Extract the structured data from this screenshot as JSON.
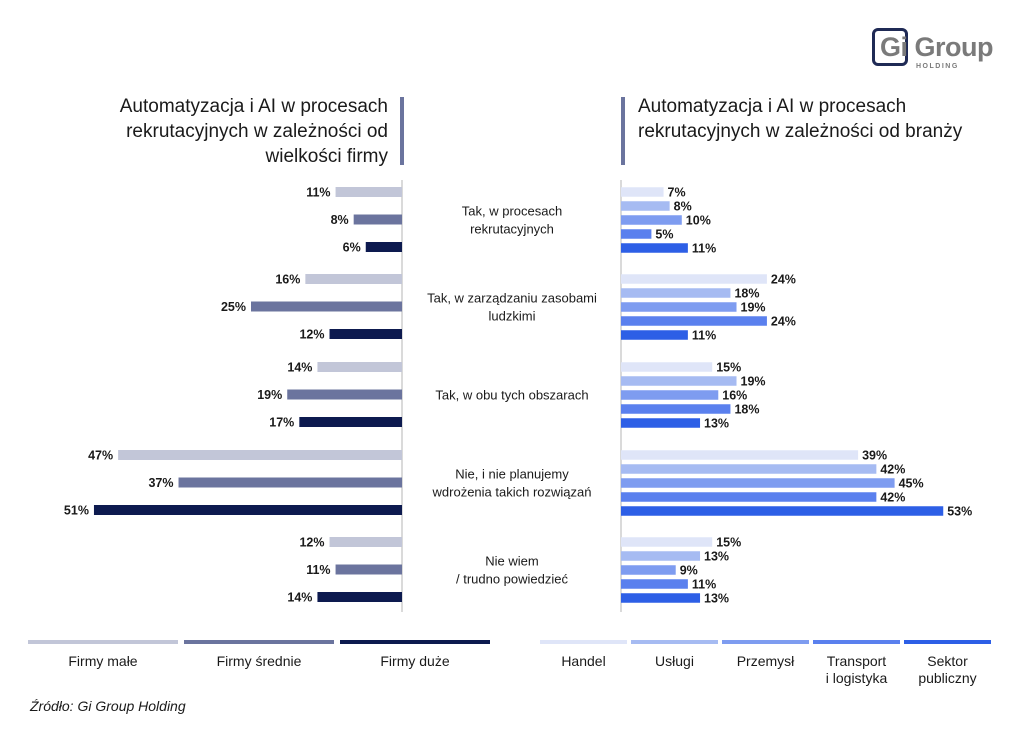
{
  "logo": {
    "name": "Gi Group",
    "sub": "HOLDING"
  },
  "titles": {
    "left": "Automatyzacja i AI w procesach rekrutacyjnych w zależności od wielkości firmy",
    "right": "Automatyzacja i AI w procesach rekrutacyjnych w zależności od branży"
  },
  "source": "Źródło: Gi Group Holding",
  "chart_data": [
    {
      "type": "bar",
      "title": "Automatyzacja i AI w procesach rekrutacyjnych w zależności od wielkości firmy",
      "orientation": "horizontal",
      "categories": [
        "Tak, w procesach rekrutacyjnych",
        "Tak, w zarządzaniu zasobami ludzkimi",
        "Tak, w obu tych obszarach",
        "Nie, i nie planujemy wdrożenia takich rozwiązań",
        "Nie wiem / trudno powiedzieć"
      ],
      "unit": "%",
      "series": [
        {
          "name": "Firmy małe",
          "color": "#c2c6d8",
          "values": [
            11,
            16,
            14,
            47,
            12
          ]
        },
        {
          "name": "Firmy średnie",
          "color": "#6b749e",
          "values": [
            8,
            25,
            19,
            37,
            11
          ]
        },
        {
          "name": "Firmy duże",
          "color": "#0d1a4f",
          "values": [
            6,
            12,
            17,
            51,
            14
          ]
        }
      ]
    },
    {
      "type": "bar",
      "title": "Automatyzacja i AI w procesach rekrutacyjnych w zależności od branży",
      "orientation": "horizontal",
      "categories": [
        "Tak, w procesach rekrutacyjnych",
        "Tak, w zarządzaniu zasobami ludzkimi",
        "Tak, w obu tych obszarach",
        "Nie, i nie planujemy wdrożenia takich rozwiązań",
        "Nie wiem / trudno powiedzieć"
      ],
      "unit": "%",
      "series": [
        {
          "name": "Handel",
          "color": "#dfe5f8",
          "values": [
            7,
            24,
            15,
            39,
            15
          ]
        },
        {
          "name": "Usługi",
          "color": "#a6bbf2",
          "values": [
            8,
            18,
            19,
            42,
            13
          ]
        },
        {
          "name": "Przemysł",
          "color": "#7e9cf0",
          "values": [
            10,
            19,
            16,
            45,
            9
          ]
        },
        {
          "name": "Transport i logistyka",
          "color": "#5a80ee",
          "values": [
            5,
            24,
            18,
            42,
            11
          ]
        },
        {
          "name": "Sektor publiczny",
          "color": "#2d5fe6",
          "values": [
            11,
            11,
            13,
            53,
            13
          ]
        }
      ]
    }
  ],
  "category_label_lines": [
    [
      "Tak, w procesach",
      "rekrutacyjnych"
    ],
    [
      "Tak, w zarządzaniu zasobami",
      "ludzkimi"
    ],
    [
      "Tak, w obu tych obszarach"
    ],
    [
      "Nie, i nie planujemy",
      "wdrożenia takich rozwiązań"
    ],
    [
      "Nie wiem",
      "/ trudno powiedzieć"
    ]
  ],
  "legend_lines": {
    "left": [
      [
        "Firmy małe"
      ],
      [
        "Firmy średnie"
      ],
      [
        "Firmy duże"
      ]
    ],
    "right": [
      [
        "Handel"
      ],
      [
        "Usługi"
      ],
      [
        "Przemysł"
      ],
      [
        "Transport",
        "i logistyka"
      ],
      [
        "Sektor",
        "publiczny"
      ]
    ]
  }
}
